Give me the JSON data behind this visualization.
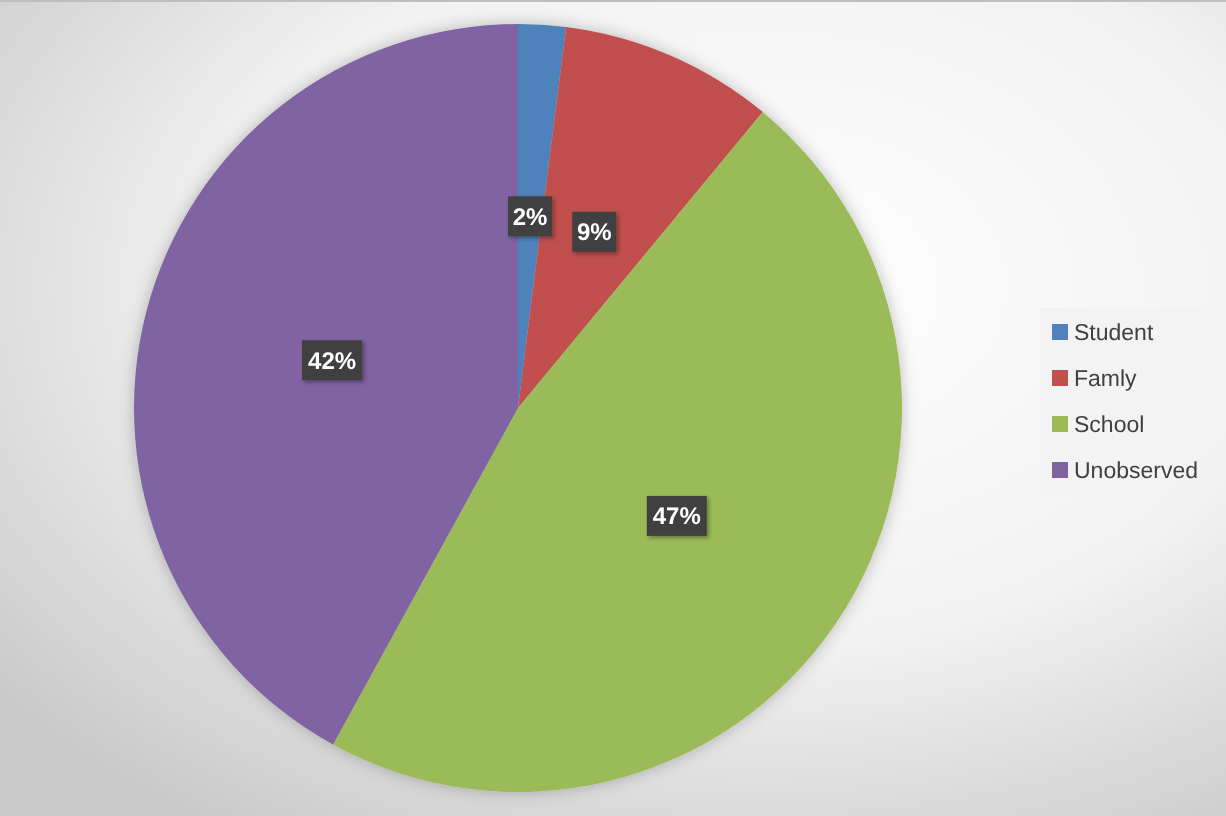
{
  "chart_data": {
    "type": "pie",
    "categories": [
      "Student",
      "Famly",
      "School",
      "Unobserved"
    ],
    "values": [
      2,
      9,
      47,
      42
    ],
    "colors": [
      "#4f81bd",
      "#c0504d",
      "#9bbb59",
      "#8064a2"
    ],
    "value_labels": [
      "2%",
      "9%",
      "47%",
      "42%"
    ],
    "legend": "right"
  }
}
